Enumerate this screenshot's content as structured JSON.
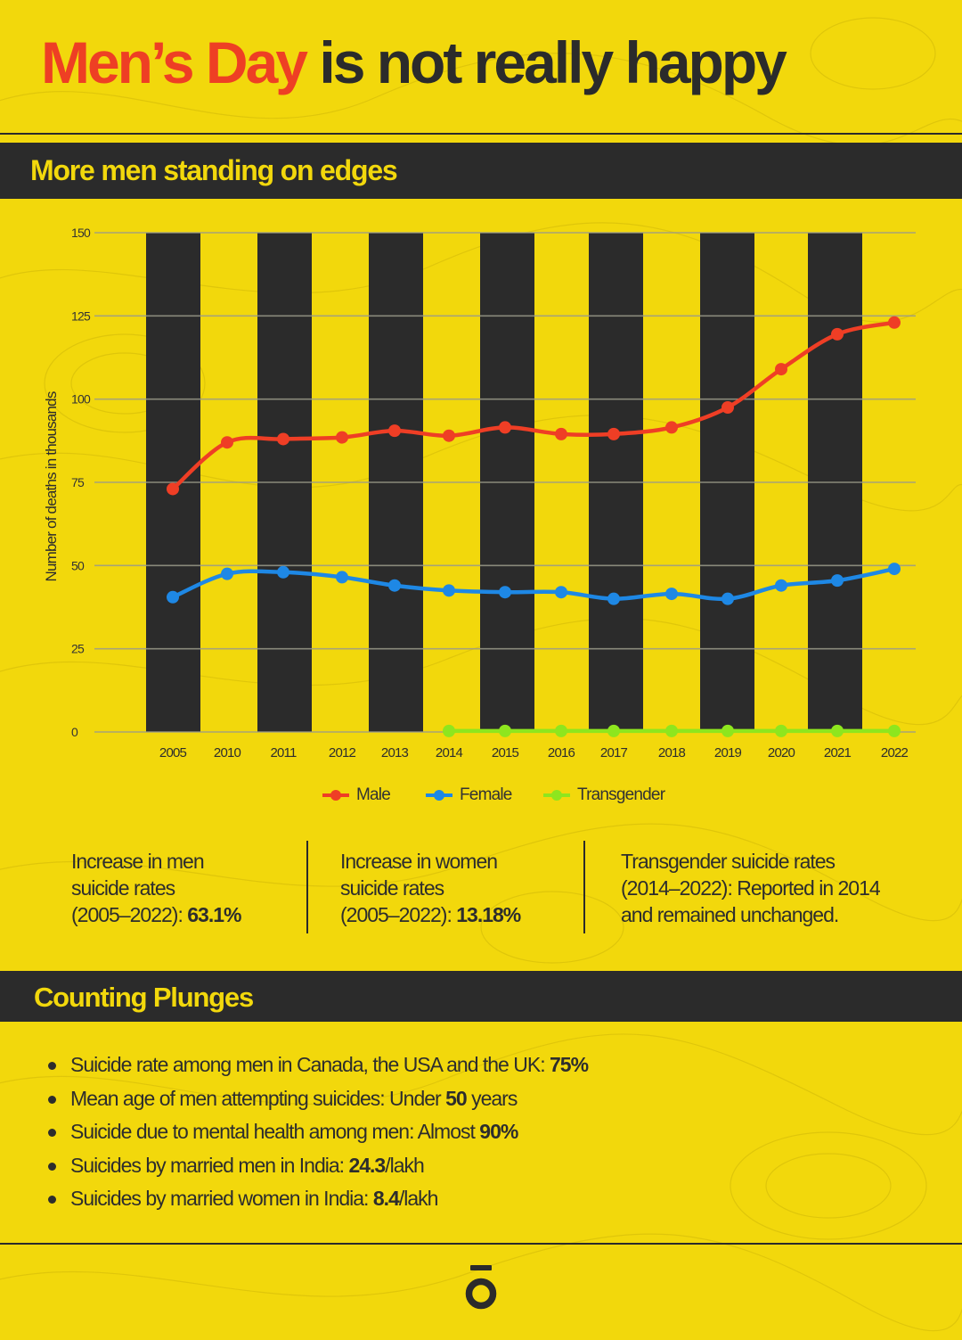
{
  "headline": {
    "accent": "Men’s Day",
    "rest": "is not really happy"
  },
  "section1": {
    "title": "More men standing on edges"
  },
  "chart_data": {
    "type": "line",
    "title": "",
    "xlabel": "",
    "ylabel": "Number of deaths in thousands",
    "ylim": [
      0,
      150
    ],
    "yticks": [
      0,
      25,
      50,
      75,
      100,
      125,
      150
    ],
    "grid": true,
    "legend_position": "bottom",
    "background_stripes": true,
    "categories": [
      "2005",
      "2010",
      "2011",
      "2012",
      "2013",
      "2014",
      "2015",
      "2016",
      "2017",
      "2018",
      "2019",
      "2020",
      "2021",
      "2022"
    ],
    "series": [
      {
        "name": "Male",
        "color": "#ef3e25",
        "values": [
          73,
          87,
          88,
          88.5,
          90.5,
          89,
          91.5,
          89.5,
          89.5,
          91.5,
          97.5,
          109,
          119.5,
          123
        ]
      },
      {
        "name": "Female",
        "color": "#1e88e5",
        "values": [
          40.5,
          47.5,
          48,
          46.5,
          44,
          42.5,
          42,
          42,
          40,
          41.5,
          40,
          44,
          45.5,
          49
        ]
      },
      {
        "name": "Transgender",
        "color": "#8ee61e",
        "values": [
          null,
          null,
          null,
          null,
          null,
          0.3,
          0.3,
          0.3,
          0.3,
          0.3,
          0.3,
          0.3,
          0.3,
          0.3
        ]
      }
    ]
  },
  "stats": [
    {
      "lines": [
        "Increase in men",
        "suicide rates"
      ],
      "last": "(2005–2022): ",
      "value": "63.1%"
    },
    {
      "lines": [
        "Increase in women",
        "suicide rates"
      ],
      "last": "(2005–2022): ",
      "value": "13.18%"
    },
    {
      "lines": [
        "Transgender suicide rates",
        "(2014–2022): Reported in 2014",
        "and remained unchanged."
      ]
    }
  ],
  "section2": {
    "title": "Counting Plunges"
  },
  "bullets": [
    {
      "label": "Suicide rate among men in Canada, the USA and the UK: ",
      "value": "75%",
      "suffix": ""
    },
    {
      "label": "Mean age of men attempting suicides: Under ",
      "value": "50",
      "suffix": " years"
    },
    {
      "label": "Suicide due to mental health among men: Almost ",
      "value": "90%",
      "suffix": ""
    },
    {
      "label": "Suicides by married men in India: ",
      "value": "24.3",
      "suffix": "/lakh"
    },
    {
      "label": "Suicides by married women in India: ",
      "value": "8.4",
      "suffix": "/lakh"
    }
  ],
  "colors": {
    "background": "#f2d80c",
    "dark": "#2b2b2b",
    "accent": "#ee3f24"
  },
  "footer": {
    "logo_icon": "brand-logo-icon"
  }
}
